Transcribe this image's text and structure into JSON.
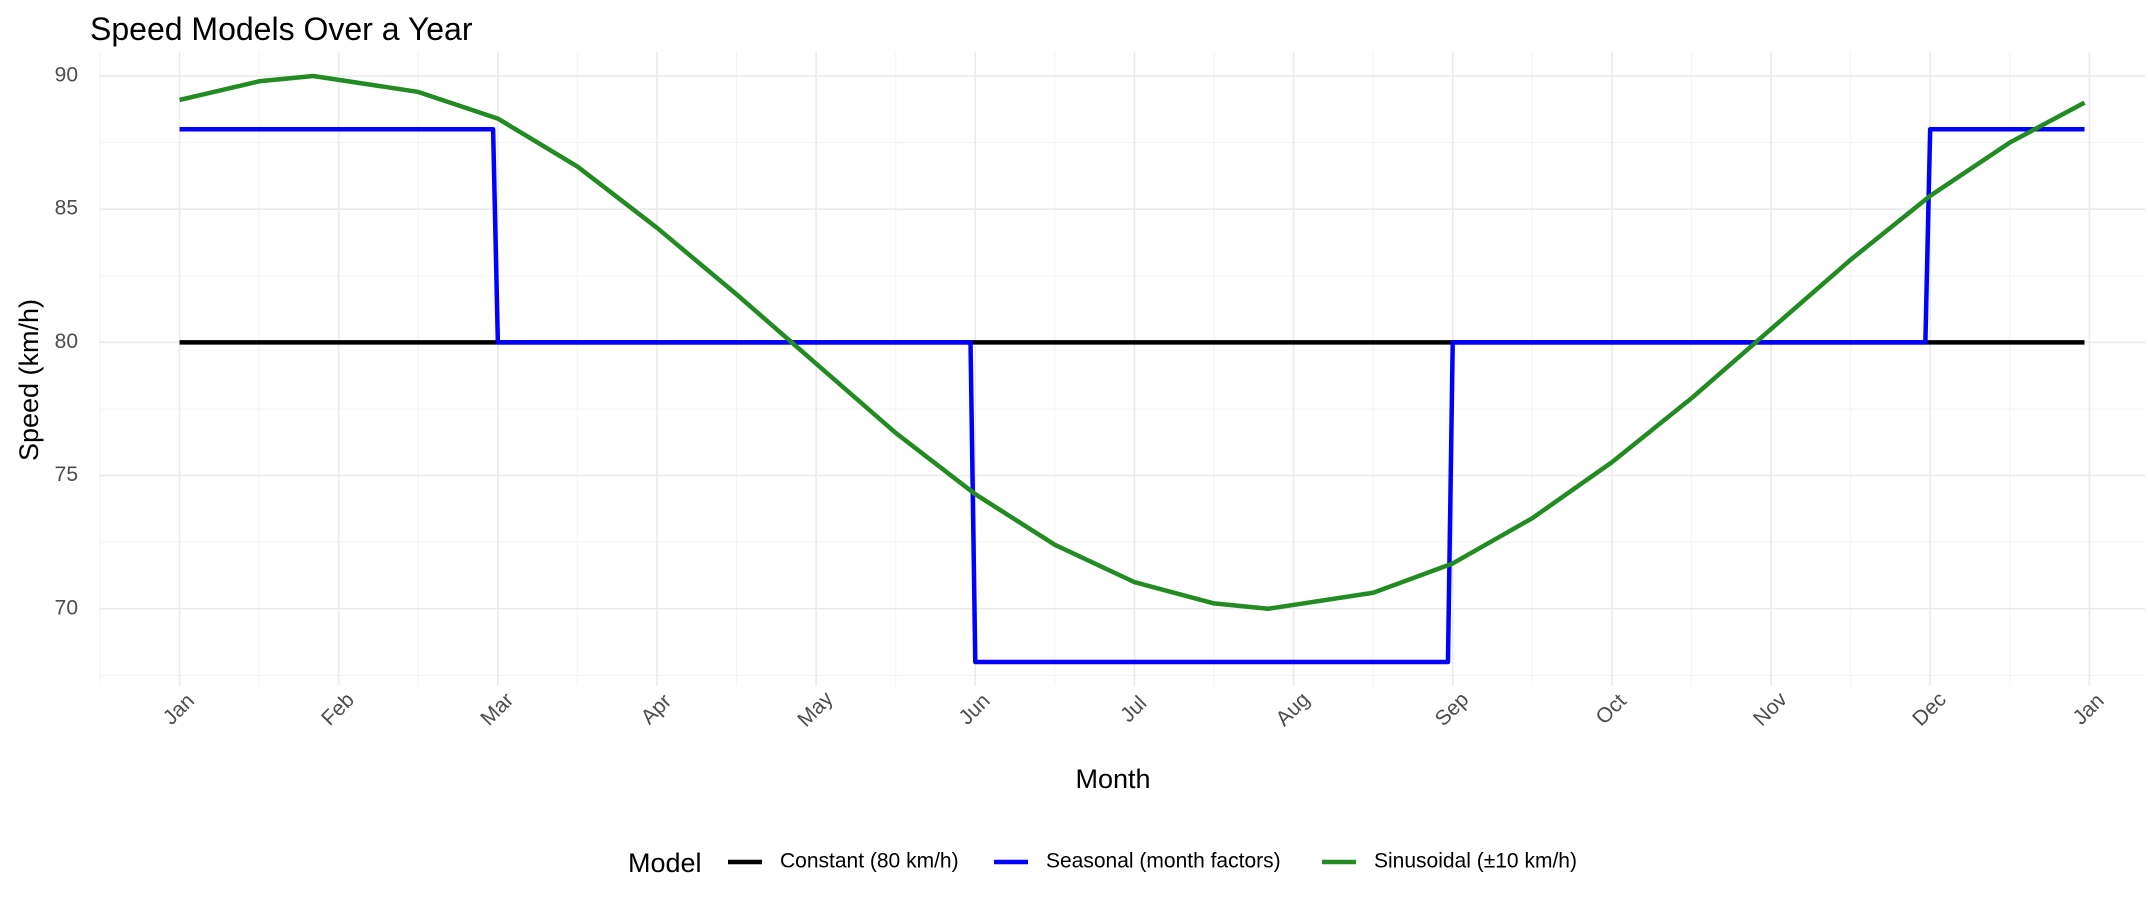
{
  "chart_data": {
    "type": "line",
    "title": "Speed Models Over a Year",
    "xlabel": "Month",
    "ylabel": "Speed (km/h)",
    "x_ticks": [
      "Jan",
      "Feb",
      "Mar",
      "Apr",
      "May",
      "Jun",
      "Jul",
      "Aug",
      "Sep",
      "Oct",
      "Nov",
      "Dec",
      "Jan"
    ],
    "y_ticks": [
      70,
      75,
      80,
      85,
      90
    ],
    "xlim": [
      -0.5,
      12.35
    ],
    "ylim": [
      67.1,
      90.9
    ],
    "grid": true,
    "legend": {
      "title": "Model",
      "placement": "bottom"
    },
    "series": [
      {
        "name": "Constant (80 km/h)",
        "color": "#000000",
        "x": [
          0,
          11.97
        ],
        "y": [
          80,
          80
        ]
      },
      {
        "name": "Seasonal (month factors)",
        "color": "#0000ff",
        "x": [
          0,
          1.97,
          2.0,
          4.97,
          5.0,
          7.97,
          8.0,
          10.97,
          11.0,
          11.97
        ],
        "y": [
          88,
          88,
          80,
          80,
          68,
          68,
          80,
          80,
          88,
          88
        ]
      },
      {
        "name": "Sinusoidal (±10 km/h)",
        "color": "#228b22",
        "x": [
          0,
          0.5,
          0.84,
          1.5,
          2,
          2.5,
          3,
          3.5,
          4,
          4.5,
          5,
          5.5,
          6,
          6.5,
          6.84,
          7.5,
          8,
          8.5,
          9,
          9.5,
          10,
          10.5,
          11,
          11.5,
          11.97
        ],
        "y": [
          89.1,
          89.8,
          90.0,
          89.4,
          88.4,
          86.6,
          84.3,
          81.8,
          79.2,
          76.6,
          74.3,
          72.4,
          71.0,
          70.2,
          70.0,
          70.6,
          71.7,
          73.4,
          75.5,
          77.9,
          80.5,
          83.1,
          85.5,
          87.5,
          89.0
        ]
      }
    ]
  }
}
